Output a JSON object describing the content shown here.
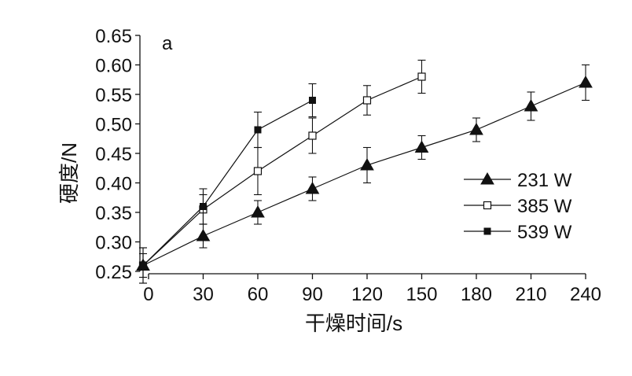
{
  "chart_data": {
    "type": "line",
    "panel_label": "a",
    "xlabel": "干燥时间/s",
    "ylabel": "硬度/N",
    "xlim": [
      -3,
      240
    ],
    "ylim": [
      0.25,
      0.65
    ],
    "x_ticks": [
      0,
      30,
      60,
      90,
      120,
      150,
      180,
      210,
      240
    ],
    "y_ticks": [
      0.25,
      0.3,
      0.35,
      0.4,
      0.45,
      0.5,
      0.55,
      0.6,
      0.65
    ],
    "legend_position": "right",
    "series": [
      {
        "name": "231 W",
        "marker": "filled-triangle",
        "x": [
          -3,
          30,
          60,
          90,
          120,
          150,
          180,
          210,
          240
        ],
        "y": [
          0.26,
          0.31,
          0.35,
          0.39,
          0.43,
          0.46,
          0.49,
          0.53,
          0.57
        ],
        "err": [
          0.02,
          0.02,
          0.02,
          0.02,
          0.03,
          0.02,
          0.02,
          0.024,
          0.03
        ]
      },
      {
        "name": "385 W",
        "marker": "open-square",
        "x": [
          -3,
          30,
          60,
          90,
          120,
          150
        ],
        "y": [
          0.26,
          0.355,
          0.42,
          0.48,
          0.54,
          0.58
        ],
        "err": [
          0.03,
          0.025,
          0.04,
          0.03,
          0.025,
          0.028
        ]
      },
      {
        "name": "539 W",
        "marker": "filled-square",
        "x": [
          -3,
          30,
          60,
          90
        ],
        "y": [
          0.26,
          0.36,
          0.49,
          0.54
        ],
        "err": [
          0.03,
          0.03,
          0.03,
          0.028
        ]
      }
    ]
  }
}
